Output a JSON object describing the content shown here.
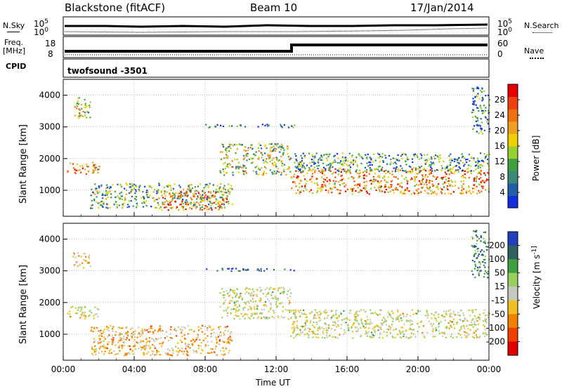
{
  "header": {
    "station": "Blackstone (fitACF)",
    "beam": "Beam 10",
    "date": "17/Jan/2014"
  },
  "top_panels": {
    "nsky_label": "N.Sky",
    "nsearch_label": "N.Search",
    "noise_ticks_left": [
      "10^5",
      "10^0"
    ],
    "noise_ticks_right": [
      "10^5",
      "10^0"
    ],
    "freq_label": "Freq.",
    "freq_unit": "[MHz]",
    "freq_ticks": [
      "18",
      "8"
    ],
    "nave_label": "Nave",
    "nave_ticks": [
      "60",
      "0"
    ],
    "cpid_label": "CPID",
    "cpid_value": "twofsound -3501"
  },
  "chart_data": [
    {
      "type": "heatmap",
      "title": "",
      "parameter": "Power",
      "xlabel": "",
      "ylabel": "Slant Range [km]",
      "x_ticks": [
        "00:00",
        "04:00",
        "08:00",
        "12:00",
        "16:00",
        "20:00",
        "00:00"
      ],
      "y_ticks": [
        1000,
        2000,
        3000,
        4000
      ],
      "ylim": [
        180,
        4500
      ],
      "colorbar": {
        "label": "Power [dB]",
        "ticks": [
          4,
          8,
          12,
          16,
          20,
          24,
          28
        ],
        "colors": [
          "#1030e0",
          "#2060a8",
          "#3a8a78",
          "#40a040",
          "#98d030",
          "#f0d000",
          "#f0a020",
          "#f07010",
          "#f04010",
          "#e80000"
        ]
      },
      "regions": [
        {
          "t0": 0.2,
          "t1": 2.0,
          "r0": 1500,
          "r1": 1900,
          "value": 22
        },
        {
          "t0": 0.5,
          "t1": 1.5,
          "r0": 3300,
          "r1": 3950,
          "value": 14
        },
        {
          "t0": 1.5,
          "t1": 9.5,
          "r0": 450,
          "r1": 1250,
          "value": 12
        },
        {
          "t0": 5.5,
          "t1": 9.2,
          "r0": 400,
          "r1": 1000,
          "value": 24
        },
        {
          "t0": 8.8,
          "t1": 12.8,
          "r0": 1500,
          "r1": 2500,
          "value": 14
        },
        {
          "t0": 12.8,
          "t1": 24.0,
          "r0": 900,
          "r1": 1700,
          "value": 22
        },
        {
          "t0": 13.0,
          "t1": 24.0,
          "r0": 1600,
          "r1": 2200,
          "value": 9
        },
        {
          "t0": 8.0,
          "t1": 13.0,
          "r0": 3000,
          "r1": 3100,
          "value": 6
        },
        {
          "t0": 23.0,
          "t1": 24.0,
          "r0": 2800,
          "r1": 4300,
          "value": 8
        }
      ]
    },
    {
      "type": "heatmap",
      "title": "",
      "parameter": "Velocity",
      "xlabel": "Time UT",
      "ylabel": "Slant Range [km]",
      "x_ticks": [
        "00:00",
        "04:00",
        "08:00",
        "12:00",
        "16:00",
        "20:00",
        "00:00"
      ],
      "y_ticks": [
        1000,
        2000,
        3000,
        4000
      ],
      "ylim": [
        180,
        4500
      ],
      "colorbar": {
        "label": "Velocity [m s^-1]",
        "ticks": [
          200,
          100,
          50,
          15,
          -15,
          -50,
          -100,
          -200
        ],
        "colors": [
          "#2040c0",
          "#306060",
          "#40a040",
          "#98d060",
          "#c8c8c0",
          "#f0c020",
          "#f08000",
          "#f04000",
          "#e00000"
        ]
      },
      "regions": [
        {
          "t0": 0.2,
          "t1": 2.0,
          "r0": 1500,
          "r1": 1900,
          "value": -15
        },
        {
          "t0": 0.5,
          "t1": 1.5,
          "r0": 3100,
          "r1": 3600,
          "value": -60
        },
        {
          "t0": 1.5,
          "t1": 9.5,
          "r0": 350,
          "r1": 1300,
          "value": -60
        },
        {
          "t0": 8.8,
          "t1": 12.8,
          "r0": 1500,
          "r1": 2500,
          "value": 0
        },
        {
          "t0": 12.8,
          "t1": 24.0,
          "r0": 900,
          "r1": 1800,
          "value": 0
        },
        {
          "t0": 8.0,
          "t1": 13.0,
          "r0": 3000,
          "r1": 3100,
          "value": 200
        },
        {
          "t0": 23.0,
          "t1": 24.0,
          "r0": 2800,
          "r1": 4300,
          "value": 150
        }
      ]
    }
  ]
}
